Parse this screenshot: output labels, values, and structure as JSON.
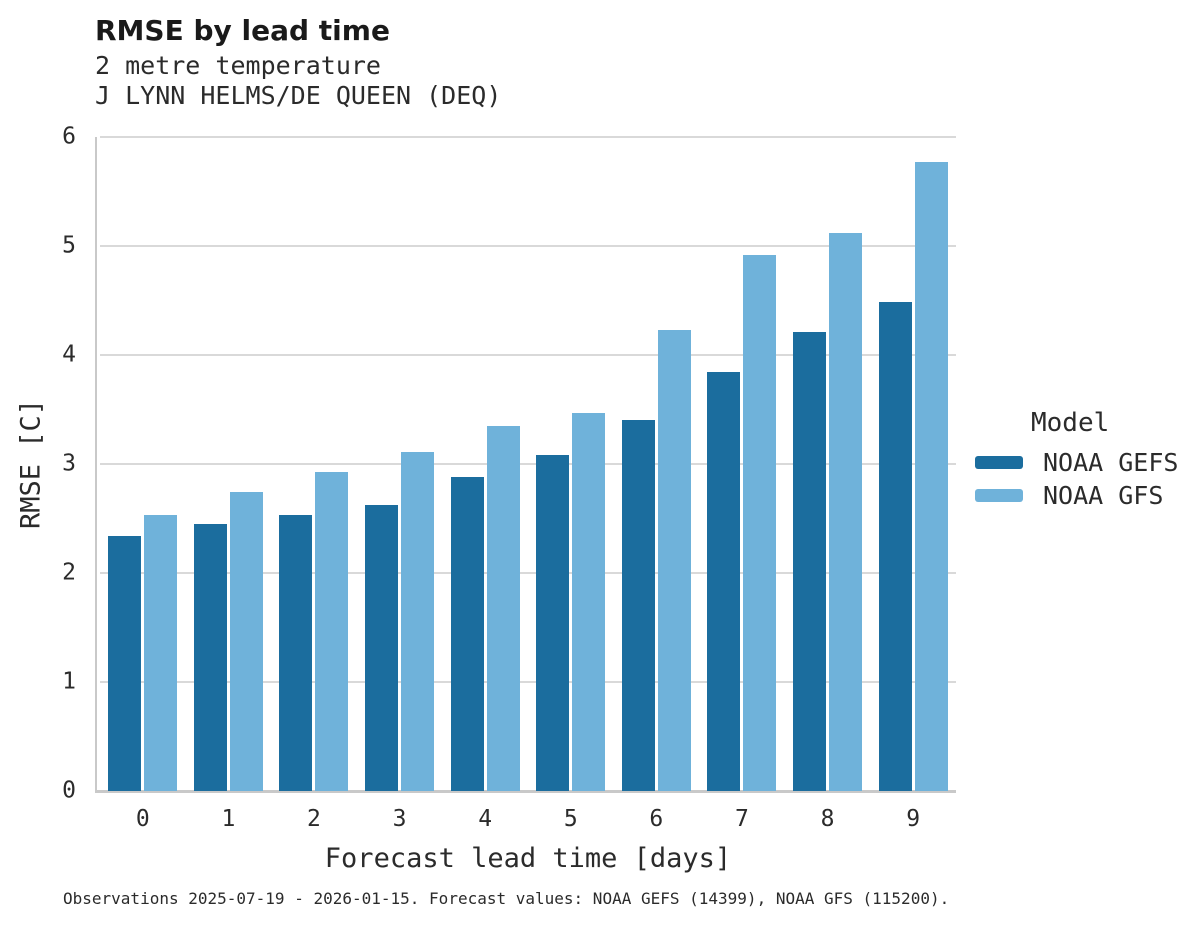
{
  "chart_data": {
    "type": "bar",
    "title": "RMSE by lead time",
    "subtitle_line1": "2 metre temperature",
    "subtitle_line2": "J LYNN HELMS/DE QUEEN (DEQ)",
    "xlabel": "Forecast lead time [days]",
    "ylabel": "RMSE [C]",
    "ylim": [
      0,
      6
    ],
    "yticks": [
      0,
      1,
      2,
      3,
      4,
      5,
      6
    ],
    "grid": true,
    "categories": [
      "0",
      "1",
      "2",
      "3",
      "4",
      "5",
      "6",
      "7",
      "8",
      "9"
    ],
    "legend": {
      "title": "Model",
      "position": "right"
    },
    "series": [
      {
        "name": "NOAA GEFS",
        "color": "#1b6d9e",
        "values": [
          2.34,
          2.45,
          2.53,
          2.62,
          2.88,
          3.08,
          3.4,
          3.84,
          4.21,
          4.49
        ]
      },
      {
        "name": "NOAA GFS",
        "color": "#6fb2da",
        "values": [
          2.53,
          2.74,
          2.93,
          3.11,
          3.35,
          3.47,
          4.23,
          4.92,
          5.12,
          5.77
        ]
      }
    ]
  },
  "footer": {
    "note": "Observations 2025-07-19 - 2026-01-15. Forecast values: NOAA GEFS (14399), NOAA GFS (115200)."
  },
  "colors": {
    "gridline": "#d9d9d9",
    "axis_line": "#c9c9c9",
    "title_text": "#1a1a1a",
    "body_text": "#2b2b2b"
  }
}
